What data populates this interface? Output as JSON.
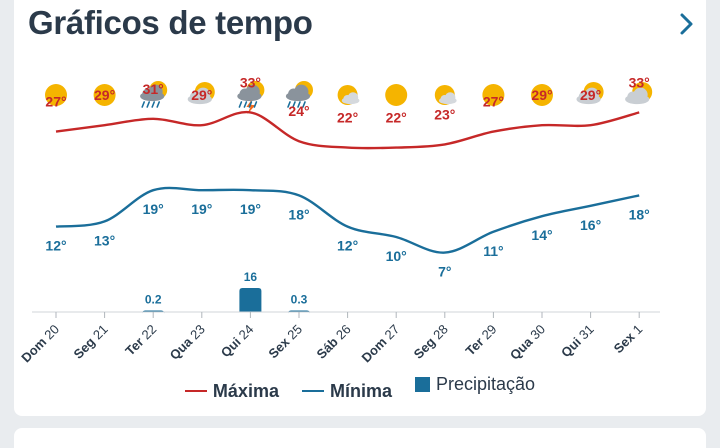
{
  "header": {
    "title": "Gráficos de tempo"
  },
  "colors": {
    "max": "#c62828",
    "min": "#1a6e9a",
    "precip": "#1a6e9a",
    "text": "#2b3a4a"
  },
  "chart_data": {
    "type": "line",
    "categories": [
      "Dom 20",
      "Seg 21",
      "Ter 22",
      "Qua 23",
      "Qui 24",
      "Sex 25",
      "Sáb 26",
      "Dom 27",
      "Seg 28",
      "Ter 29",
      "Qua 30",
      "Qui 31",
      "Sex 1"
    ],
    "icons": [
      "sun-icon",
      "sun-icon",
      "storm-rain-icon",
      "partly-cloudy-icon",
      "thunderstorm-icon",
      "storm-rain-icon",
      "sun-cloud-icon",
      "sun-icon",
      "sun-cloud-icon",
      "sun-icon",
      "sun-icon",
      "partly-cloudy-icon",
      "partly-cloudy-icon"
    ],
    "series": [
      {
        "name": "Máxima",
        "values": [
          27,
          29,
          31,
          29,
          33,
          24,
          22,
          22,
          23,
          27,
          29,
          29,
          33
        ]
      },
      {
        "name": "Mínima",
        "values": [
          12,
          13,
          19,
          19,
          19,
          18,
          12,
          10,
          7,
          11,
          14,
          16,
          18
        ]
      }
    ],
    "precipitation": {
      "name": "Precipitação",
      "values": [
        0,
        0,
        0.2,
        0,
        16,
        0.3,
        0,
        0,
        0,
        0,
        0,
        0,
        0
      ],
      "labels": [
        "",
        "",
        "0.2",
        "",
        "16",
        "0.3",
        "",
        "",
        "",
        "",
        "",
        "",
        ""
      ]
    },
    "labels_max": [
      "27°",
      "29°",
      "31°",
      "29°",
      "33°",
      "24°",
      "22°",
      "22°",
      "23°",
      "27°",
      "29°",
      "29°",
      "33°"
    ],
    "labels_min": [
      "12°",
      "13°",
      "19°",
      "19°",
      "19°",
      "18°",
      "12°",
      "10°",
      "7°",
      "11°",
      "14°",
      "16°",
      "18°"
    ],
    "legend_position": "bottom",
    "grid": false
  }
}
